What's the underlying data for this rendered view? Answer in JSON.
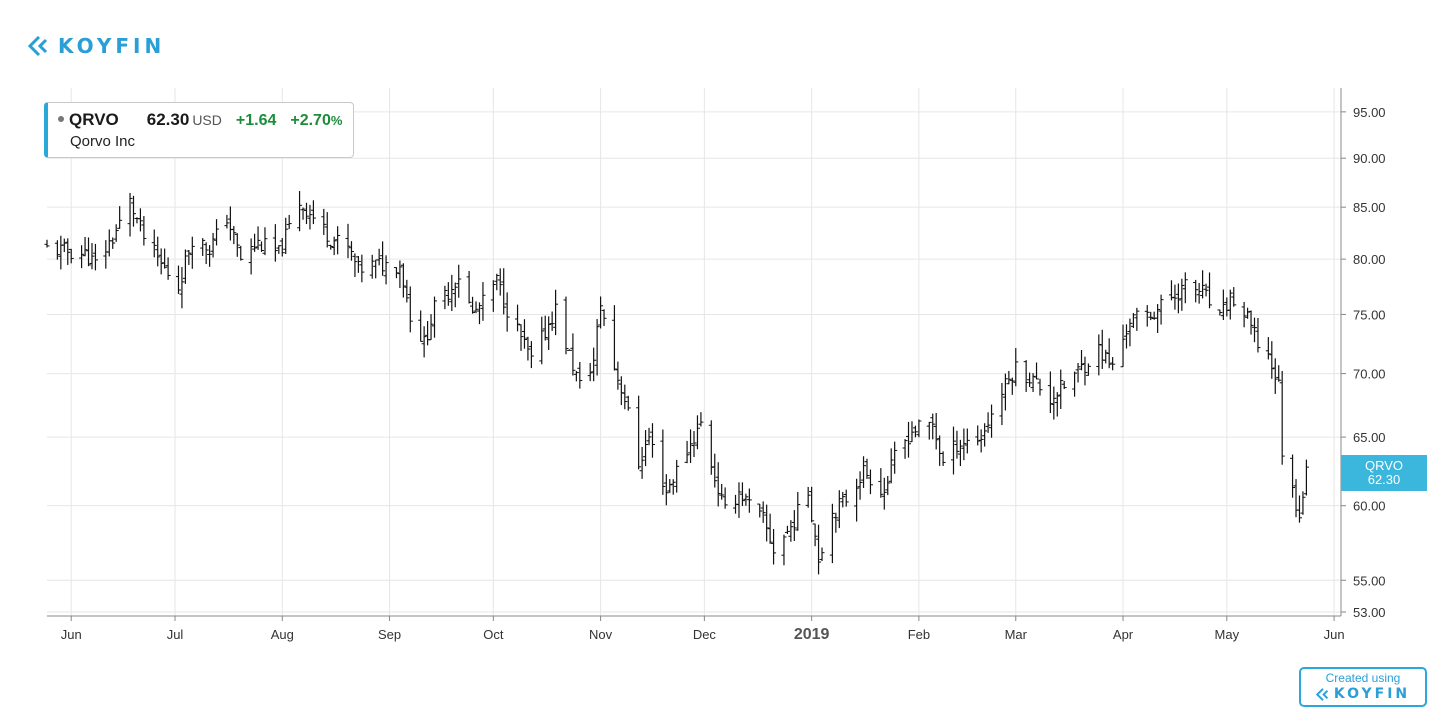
{
  "brand": {
    "name": "KOYFIN",
    "color": "#2a9fd6",
    "icon": "koyfin-chevron-icon"
  },
  "legend": {
    "ticker": "QRVO",
    "price": "62.30",
    "currency": "USD",
    "change": "+1.64",
    "change_pct": "+2.70",
    "pct_sign": "%",
    "company": "Qorvo Inc",
    "accent_color": "#2aa8d8",
    "positive_color": "#1e8c3a"
  },
  "price_badge": {
    "ticker": "QRVO",
    "price": "62.30",
    "color": "#3bb6dc"
  },
  "footer": {
    "created_using": "Created using",
    "brand": "KOYFIN"
  },
  "chart_data": {
    "type": "ohlc",
    "title": "",
    "xlabel": "",
    "ylabel": "",
    "y_scale": "log",
    "ylim": [
      53,
      97
    ],
    "grid": true,
    "y_ticks": [
      95,
      90,
      85,
      80,
      75,
      70,
      65,
      60,
      55,
      53
    ],
    "y_tick_labels": [
      "95.00",
      "90.00",
      "85.00",
      "80.00",
      "75.00",
      "70.00",
      "65.00",
      "60.00",
      "55.00",
      "53.00"
    ],
    "x_range": [
      "2018-05-25",
      "2019-06-03"
    ],
    "x_ticks": [
      {
        "date": "2018-06-01",
        "label": "Jun"
      },
      {
        "date": "2018-07-01",
        "label": "Jul"
      },
      {
        "date": "2018-08-01",
        "label": "Aug"
      },
      {
        "date": "2018-09-01",
        "label": "Sep"
      },
      {
        "date": "2018-10-01",
        "label": "Oct"
      },
      {
        "date": "2018-11-01",
        "label": "Nov"
      },
      {
        "date": "2018-12-01",
        "label": "Dec"
      },
      {
        "date": "2019-01-01",
        "label": "2019"
      },
      {
        "date": "2019-02-01",
        "label": "Feb"
      },
      {
        "date": "2019-03-01",
        "label": "Mar"
      },
      {
        "date": "2019-04-01",
        "label": "Apr"
      },
      {
        "date": "2019-05-01",
        "label": "May"
      },
      {
        "date": "2019-06-01",
        "label": "Jun"
      }
    ],
    "series": [
      {
        "color": "#111111",
        "close_anchors": [
          [
            "2018-05-25",
            81.0
          ],
          [
            "2018-06-05",
            80.5
          ],
          [
            "2018-06-08",
            79.5
          ],
          [
            "2018-06-13",
            82.0
          ],
          [
            "2018-06-18",
            85.5
          ],
          [
            "2018-06-22",
            82.0
          ],
          [
            "2018-06-27",
            79.5
          ],
          [
            "2018-07-02",
            77.5
          ],
          [
            "2018-07-06",
            82.0
          ],
          [
            "2018-07-11",
            81.0
          ],
          [
            "2018-07-16",
            84.0
          ],
          [
            "2018-07-20",
            80.0
          ],
          [
            "2018-07-25",
            81.5
          ],
          [
            "2018-07-31",
            80.5
          ],
          [
            "2018-08-06",
            85.5
          ],
          [
            "2018-08-10",
            84.0
          ],
          [
            "2018-08-15",
            82.0
          ],
          [
            "2018-08-20",
            81.0
          ],
          [
            "2018-08-23",
            79.0
          ],
          [
            "2018-08-28",
            79.5
          ],
          [
            "2018-09-04",
            79.5
          ],
          [
            "2018-09-07",
            75.0
          ],
          [
            "2018-09-11",
            72.5
          ],
          [
            "2018-09-14",
            75.5
          ],
          [
            "2018-09-18",
            77.0
          ],
          [
            "2018-09-21",
            78.5
          ],
          [
            "2018-09-25",
            75.0
          ],
          [
            "2018-09-28",
            76.0
          ],
          [
            "2018-10-02",
            78.0
          ],
          [
            "2018-10-05",
            75.5
          ],
          [
            "2018-10-09",
            73.0
          ],
          [
            "2018-10-12",
            71.0
          ],
          [
            "2018-10-16",
            73.5
          ],
          [
            "2018-10-19",
            75.5
          ],
          [
            "2018-10-23",
            71.5
          ],
          [
            "2018-10-26",
            69.0
          ],
          [
            "2018-10-30",
            71.0
          ],
          [
            "2018-11-01",
            76.0
          ],
          [
            "2018-11-05",
            70.5
          ],
          [
            "2018-11-08",
            68.0
          ],
          [
            "2018-11-12",
            63.0
          ],
          [
            "2018-11-15",
            65.0
          ],
          [
            "2018-11-20",
            61.0
          ],
          [
            "2018-11-26",
            64.0
          ],
          [
            "2018-11-30",
            66.0
          ],
          [
            "2018-12-04",
            62.0
          ],
          [
            "2018-12-07",
            59.5
          ],
          [
            "2018-12-11",
            61.0
          ],
          [
            "2018-12-14",
            60.0
          ],
          [
            "2018-12-18",
            59.0
          ],
          [
            "2018-12-21",
            57.0
          ],
          [
            "2018-12-26",
            58.5
          ],
          [
            "2018-12-31",
            61.0
          ],
          [
            "2019-01-03",
            56.5
          ],
          [
            "2019-01-07",
            59.5
          ],
          [
            "2019-01-11",
            60.5
          ],
          [
            "2019-01-16",
            62.5
          ],
          [
            "2019-01-22",
            61.0
          ],
          [
            "2019-01-25",
            63.5
          ],
          [
            "2019-01-30",
            65.5
          ],
          [
            "2019-02-05",
            66.0
          ],
          [
            "2019-02-08",
            63.0
          ],
          [
            "2019-02-12",
            64.5
          ],
          [
            "2019-02-19",
            65.0
          ],
          [
            "2019-02-25",
            68.5
          ],
          [
            "2019-03-01",
            70.5
          ],
          [
            "2019-03-06",
            69.5
          ],
          [
            "2019-03-11",
            68.0
          ],
          [
            "2019-03-15",
            69.0
          ],
          [
            "2019-03-20",
            70.5
          ],
          [
            "2019-03-25",
            72.0
          ],
          [
            "2019-03-29",
            70.5
          ],
          [
            "2019-04-03",
            74.5
          ],
          [
            "2019-04-09",
            75.0
          ],
          [
            "2019-04-15",
            76.5
          ],
          [
            "2019-04-19",
            77.5
          ],
          [
            "2019-04-24",
            77.0
          ],
          [
            "2019-04-29",
            74.5
          ],
          [
            "2019-05-02",
            76.5
          ],
          [
            "2019-05-07",
            74.5
          ],
          [
            "2019-05-10",
            72.5
          ],
          [
            "2019-05-13",
            71.5
          ],
          [
            "2019-05-16",
            69.0
          ],
          [
            "2019-05-17",
            64.0
          ],
          [
            "2019-05-20",
            61.0
          ],
          [
            "2019-05-22",
            59.5
          ],
          [
            "2019-05-24",
            62.3
          ]
        ]
      }
    ]
  }
}
